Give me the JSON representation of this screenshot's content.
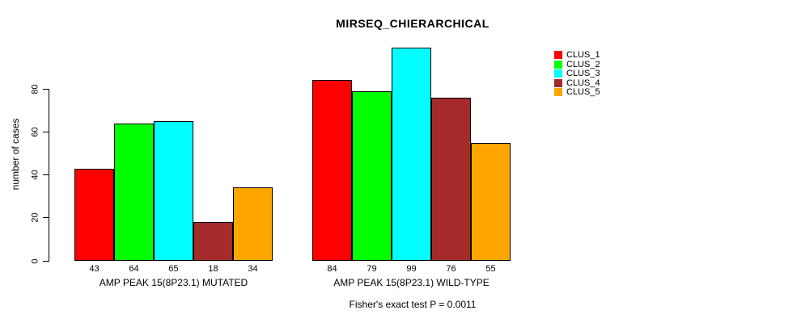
{
  "chart_data": {
    "type": "bar",
    "title": "MIRSEQ_CHIERARCHICAL",
    "xlabel": "",
    "ylabel": "number of cases",
    "annotation": "Fisher's exact test P = 0.0011",
    "ylim": [
      0,
      80
    ],
    "y_ticks": [
      0,
      20,
      40,
      60,
      80
    ],
    "grid": false,
    "legend_position": "right",
    "bar_value_labels_shown": true,
    "categories": [
      "AMP PEAK 15(8P23.1) MUTATED",
      "AMP PEAK 15(8P23.1) WILD-TYPE"
    ],
    "series": [
      {
        "name": "CLUS_1",
        "color": "#FF0000",
        "values": [
          43,
          84
        ]
      },
      {
        "name": "CLUS_2",
        "color": "#00FF00",
        "values": [
          64,
          79
        ]
      },
      {
        "name": "CLUS_3",
        "color": "#00FFFF",
        "values": [
          65,
          99
        ]
      },
      {
        "name": "CLUS_4",
        "color": "#A52A2A",
        "values": [
          18,
          76
        ]
      },
      {
        "name": "CLUS_5",
        "color": "#FFA500",
        "values": [
          34,
          55
        ]
      }
    ]
  },
  "colors": {
    "background": "#FFFFFF",
    "axis": "#000000",
    "bar_border": "#000000",
    "text": "#000000"
  }
}
